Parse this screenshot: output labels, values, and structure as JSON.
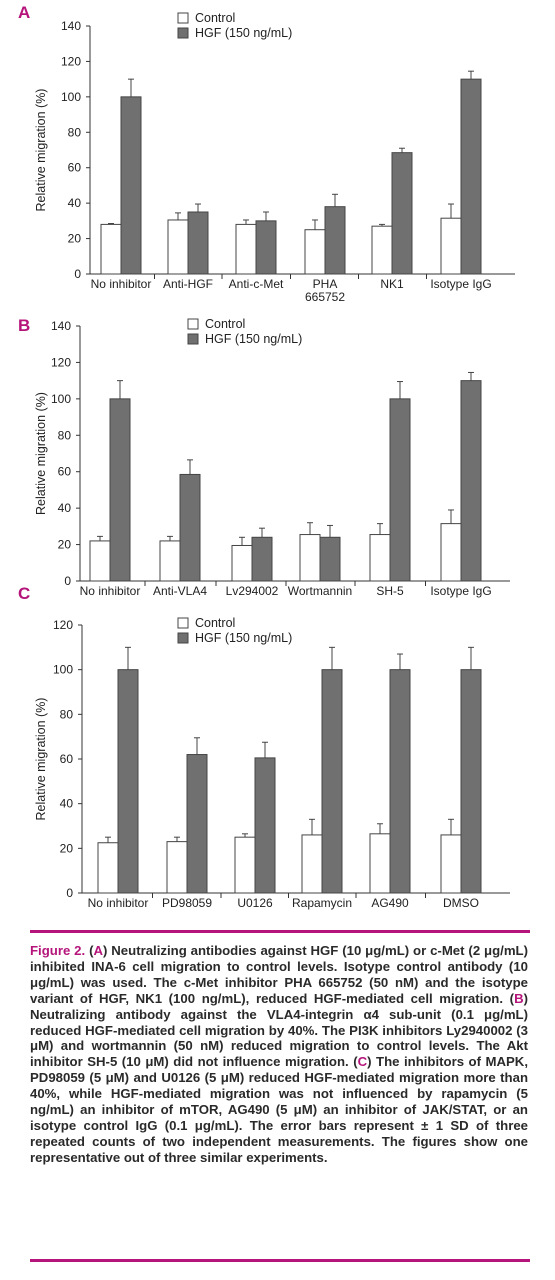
{
  "colors": {
    "control": "#ffffff",
    "hgf": "#707070",
    "accent": "#b5157a"
  },
  "chart_data": [
    {
      "type": "bar",
      "panel": "A",
      "ylabel": "Relative migration (%)",
      "ylim": [
        0,
        140
      ],
      "yticks": [
        0,
        20,
        40,
        60,
        80,
        100,
        120,
        140
      ],
      "categories": [
        "No inhibitor",
        "Anti-HGF",
        "Anti-c-Met",
        "PHA\n665752",
        "NK1",
        "Isotype IgG"
      ],
      "series": [
        {
          "name": "Control",
          "values": [
            28,
            30.5,
            28,
            25,
            27,
            31.5
          ],
          "errors": [
            0.5,
            4,
            2.5,
            5.5,
            1,
            8
          ]
        },
        {
          "name": "HGF (150 ng/mL)",
          "values": [
            100,
            35,
            30,
            38,
            68.5,
            110
          ],
          "errors": [
            10,
            4.5,
            5,
            7,
            2.5,
            4.5
          ]
        }
      ],
      "grid": false,
      "legend": "top-left"
    },
    {
      "type": "bar",
      "panel": "B",
      "ylabel": "Relative migration (%)",
      "ylim": [
        0,
        140
      ],
      "yticks": [
        0,
        20,
        40,
        60,
        80,
        100,
        120,
        140
      ],
      "categories": [
        "No inhibitor",
        "Anti-VLA4",
        "Lv294002",
        "Wortmannin",
        "SH-5",
        "Isotype IgG"
      ],
      "series": [
        {
          "name": "Control",
          "values": [
            22,
            22,
            19.5,
            25.5,
            25.5,
            31.5
          ],
          "errors": [
            2.5,
            2.5,
            4.5,
            6.5,
            6,
            7.5
          ]
        },
        {
          "name": "HGF (150 ng/mL)",
          "values": [
            100,
            58.5,
            24,
            24,
            100,
            110
          ],
          "errors": [
            10,
            8,
            5,
            6.5,
            9.5,
            4.5
          ]
        }
      ],
      "grid": false,
      "legend": "top-left"
    },
    {
      "type": "bar",
      "panel": "C",
      "ylabel": "Relative migration (%)",
      "ylim": [
        0,
        120
      ],
      "yticks": [
        0,
        20,
        40,
        60,
        80,
        100,
        120
      ],
      "categories": [
        "No inhibitor",
        "PD98059",
        "U0126",
        "Rapamycin",
        "AG490",
        "DMSO"
      ],
      "series": [
        {
          "name": "Control",
          "values": [
            22.5,
            23,
            25,
            26,
            26.5,
            26
          ],
          "errors": [
            2.5,
            2,
            1.5,
            7,
            4.5,
            7
          ]
        },
        {
          "name": "HGF (150 ng/mL)",
          "values": [
            100,
            62,
            60.5,
            100,
            100,
            100
          ],
          "errors": [
            10,
            7.5,
            7,
            10,
            7,
            10
          ]
        }
      ],
      "grid": false,
      "legend": "top-left"
    }
  ],
  "caption": {
    "figure_label": "Figure 2.",
    "parts": [
      {
        "kind": "text",
        "text": " ("
      },
      {
        "kind": "label",
        "text": "A"
      },
      {
        "kind": "text",
        "text": ") Neutralizing antibodies against HGF (10 μg/mL) or c-Met (2 μg/mL) inhibited INA-6 cell migration to control levels. Isotype control antibody (10 μg/mL) was used. The c-Met inhibitor PHA 665752 (50 nM) and the isotype variant of HGF, NK1 (100 ng/mL), reduced HGF-mediated cell migration. ("
      },
      {
        "kind": "label",
        "text": "B"
      },
      {
        "kind": "text",
        "text": ") Neutralizing antibody against the VLA4-integrin α4 sub-unit (0.1 μg/mL) reduced HGF-mediated cell migration by 40%. The PI3K inhibitors Ly2940002 (3 μM) and wortmannin (50 nM) reduced migration to control levels. The Akt inhibitor SH-5 (10 μM) did not influence migration. ("
      },
      {
        "kind": "label",
        "text": "C"
      },
      {
        "kind": "text",
        "text": ") The inhibitors of MAPK, PD98059 (5 μM) and U0126 (5 μM) reduced HGF-mediated migration more than 40%, while HGF-mediated migration was not influenced by rapamycin (5 ng/mL) an inhibitor of mTOR, AG490 (5 μM) an inhibitor of JAK/STAT, or an isotype control IgG (0.1 μg/mL). The error bars represent ± 1 SD of three repeated counts of two independent measurements. The figures show one representative out of three similar experiments."
      }
    ]
  }
}
